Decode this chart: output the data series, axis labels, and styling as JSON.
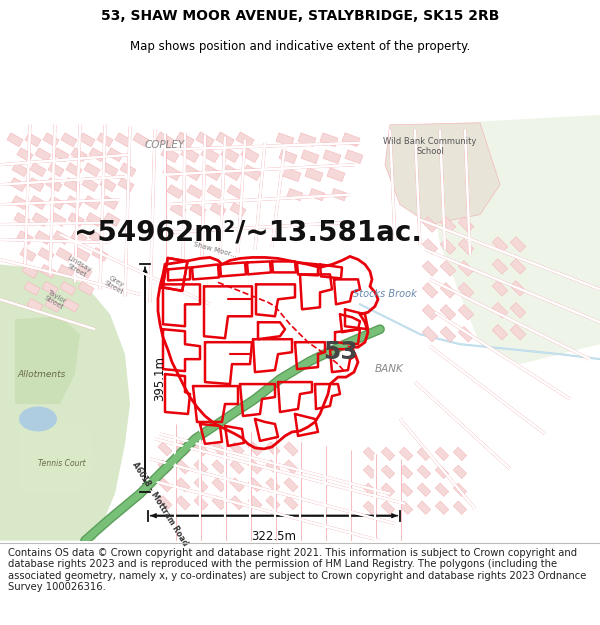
{
  "title_line1": "53, SHAW MOOR AVENUE, STALYBRIDGE, SK15 2RB",
  "title_line2": "Map shows position and indicative extent of the property.",
  "area_text": "~54962m²/~13.581ac.",
  "label_53": "53",
  "label_bank": "BANK",
  "dim_horizontal": "322.5m",
  "dim_vertical": "395.1m",
  "copyright_text": "Contains OS data © Crown copyright and database right 2021. This information is subject to Crown copyright and database rights 2023 and is reproduced with the permission of HM Land Registry. The polygons (including the associated geometry, namely x, y co-ordinates) are subject to Crown copyright and database rights 2023 Ordnance Survey 100026316.",
  "map_bg": "#f7f2ed",
  "red_color": "#e8000a",
  "red_light": "#f5b8bc",
  "building_fill": "#f5d8d8",
  "title_fontsize": 10,
  "subtitle_fontsize": 8.5,
  "area_fontsize": 20,
  "dim_fontsize": 8.5,
  "label_53_fontsize": 18,
  "copyright_fontsize": 7.2,
  "green_road": "#6db36d",
  "park_green": "#d4e6c3",
  "park_green2": "#ddeece",
  "water_blue": "#aecde0",
  "stream_blue": "#9dbdd0",
  "right_green": "#e2edd4",
  "school_color": "#e8e0d0"
}
